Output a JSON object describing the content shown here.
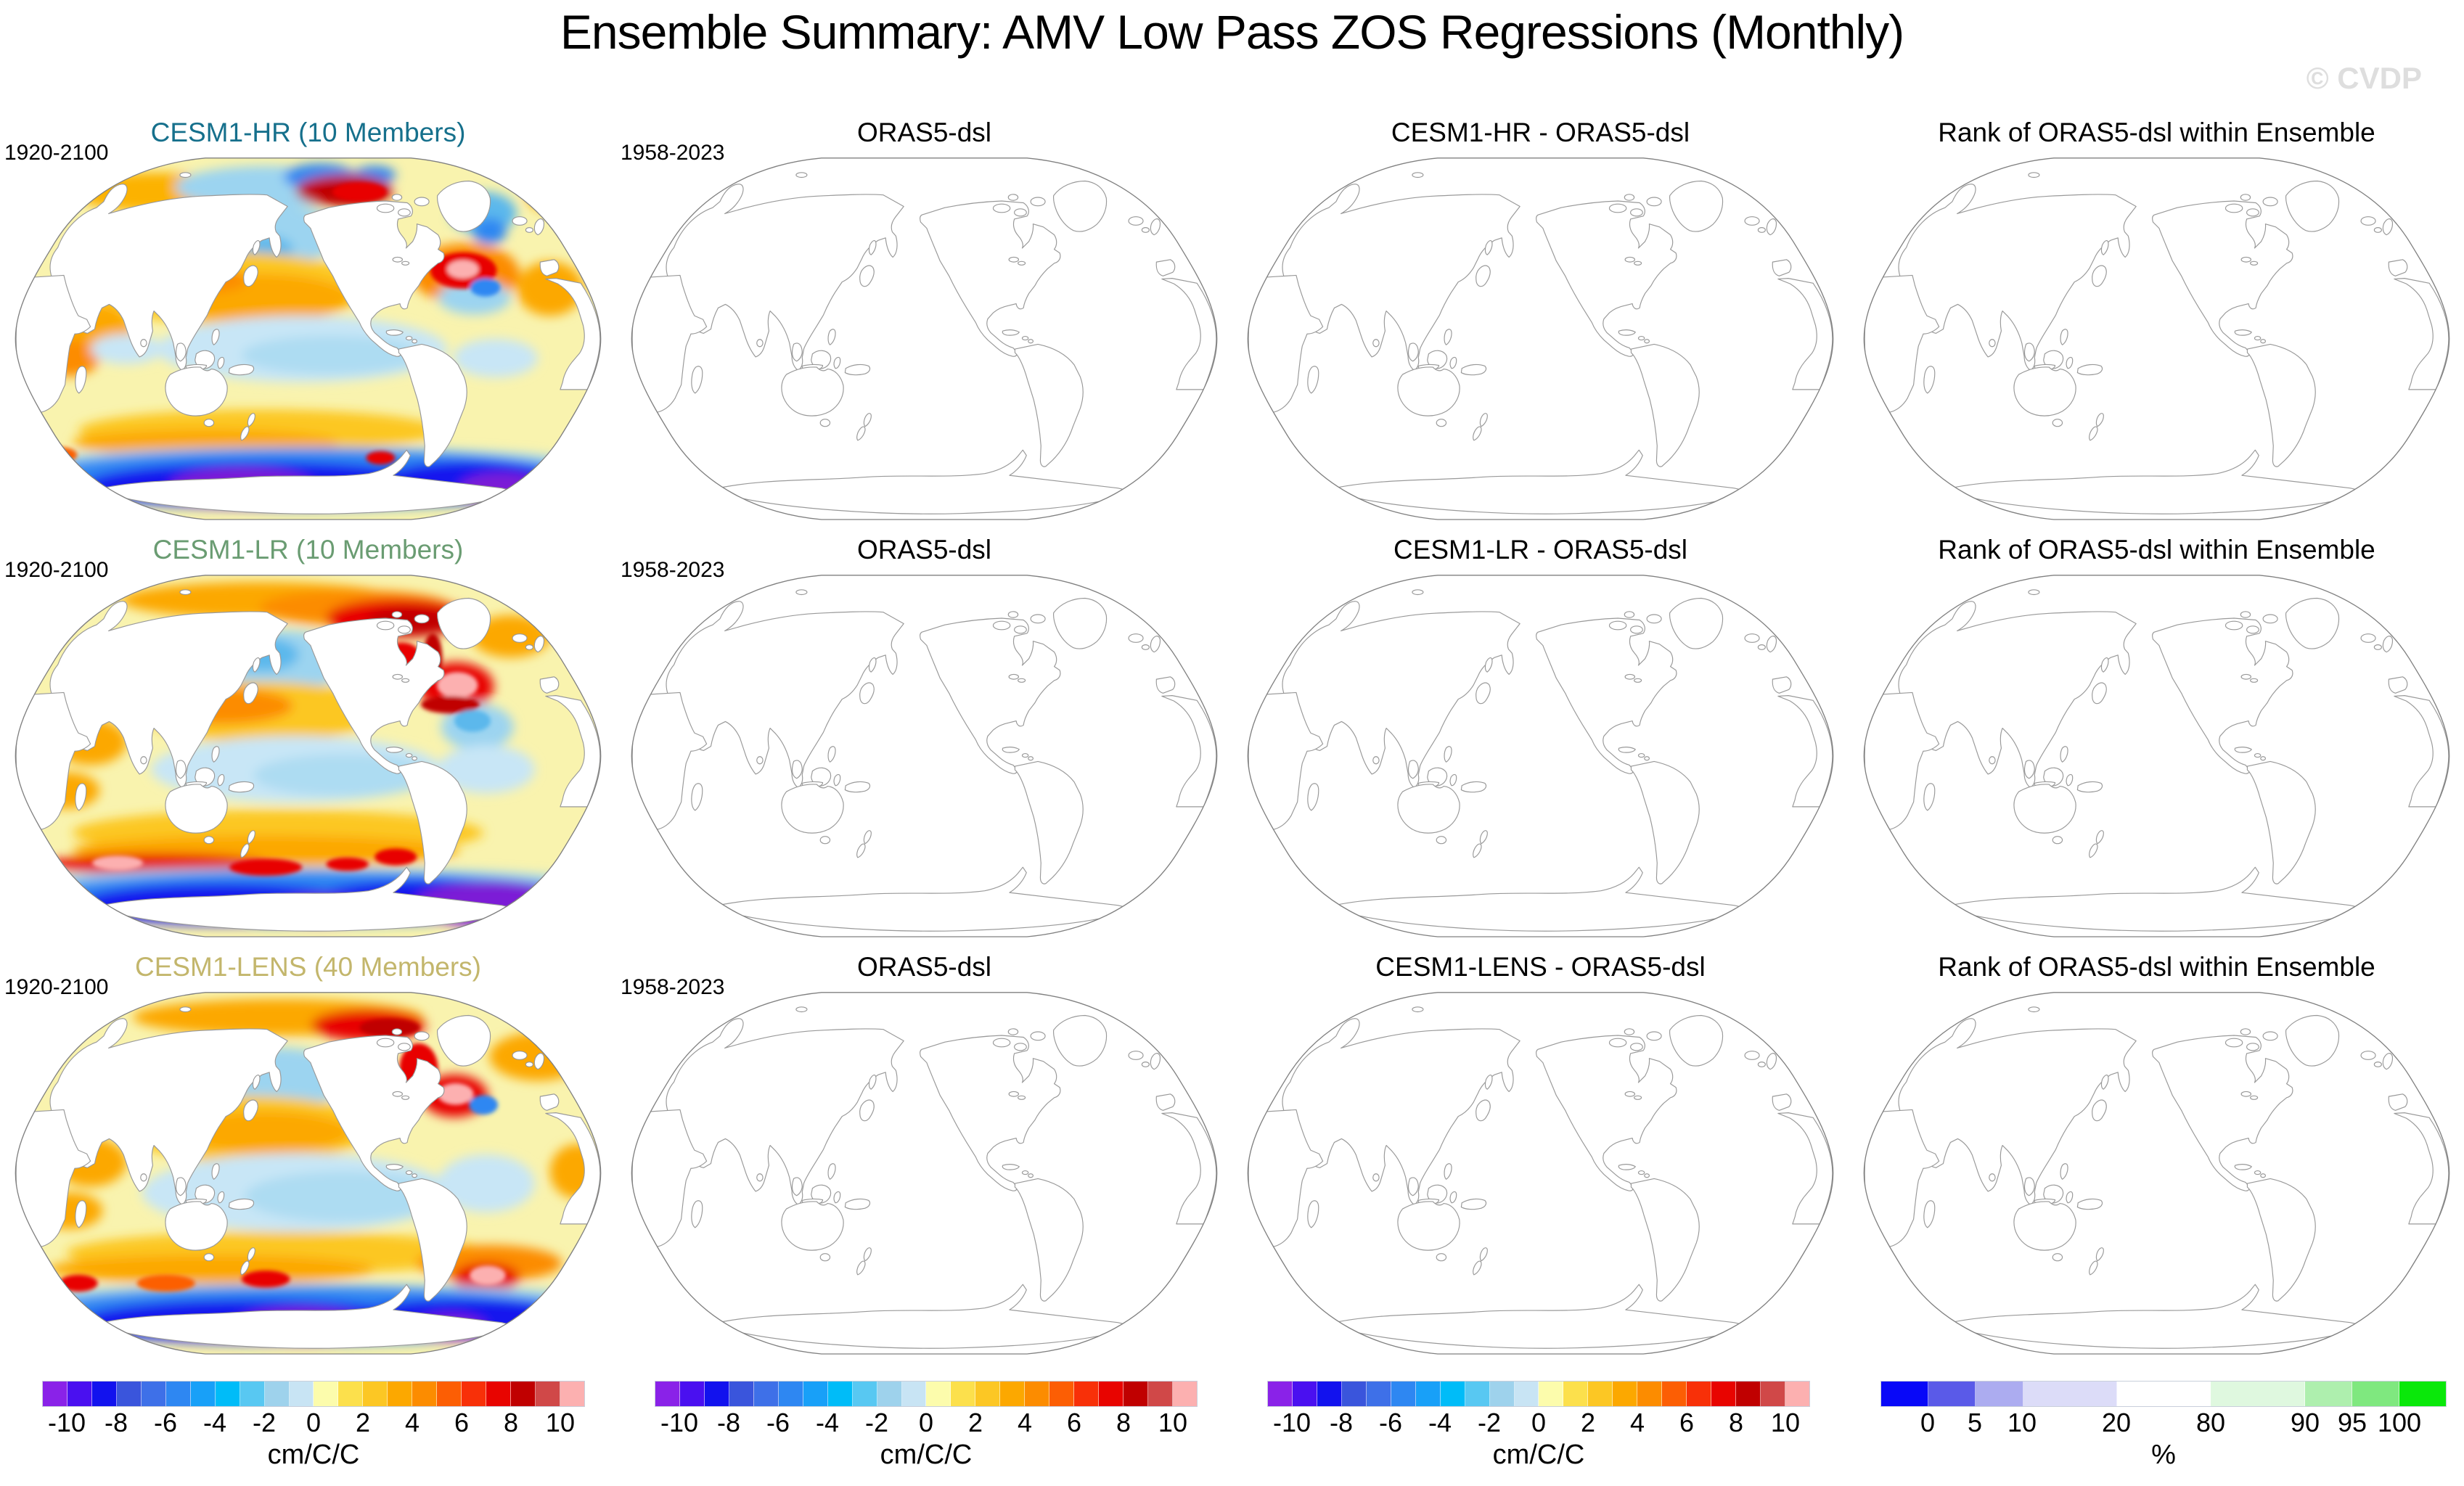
{
  "title": "Ensemble Summary: AMV Low Pass ZOS Regressions (Monthly)",
  "watermark": "© CVDP",
  "rows": [
    {
      "id": "cesm1-hr",
      "col1_title": "CESM1-HR (10 Members)",
      "col1_color": "#16708C",
      "col1_period": "1920-2100",
      "col2_title": "ORAS5-dsl",
      "col2_period": "1958-2023",
      "col3_title": "CESM1-HR - ORAS5-dsl",
      "col4_title": "Rank of ORAS5-dsl within Ensemble"
    },
    {
      "id": "cesm1-lr",
      "col1_title": "CESM1-LR (10 Members)",
      "col1_color": "#6A9C72",
      "col1_period": "1920-2100",
      "col2_title": "ORAS5-dsl",
      "col2_period": "1958-2023",
      "col3_title": "CESM1-LR - ORAS5-dsl",
      "col4_title": "Rank of ORAS5-dsl within Ensemble"
    },
    {
      "id": "cesm1-lens",
      "col1_title": "CESM1-LENS (40 Members)",
      "col1_color": "#C3B66C",
      "col1_period": "1920-2100",
      "col2_title": "ORAS5-dsl",
      "col2_period": "1958-2023",
      "col3_title": "CESM1-LENS - ORAS5-dsl",
      "col4_title": "Rank of ORAS5-dsl within Ensemble"
    }
  ],
  "colorbars": {
    "regression": {
      "unit": "cm/C/C",
      "ticks": [
        "-10",
        "-8",
        "-6",
        "-4",
        "-2",
        "0",
        "2",
        "4",
        "6",
        "8",
        "10"
      ],
      "colors": [
        "#8A22E8",
        "#4A10F0",
        "#1212EE",
        "#3A55DC",
        "#3E70E8",
        "#2E87F2",
        "#18A0F8",
        "#00BCF8",
        "#58C8F2",
        "#9ED2EC",
        "#C8E4F4",
        "#FCFCAC",
        "#FCE04C",
        "#FCC724",
        "#FCA800",
        "#FC8C00",
        "#FC5E04",
        "#F83008",
        "#E80400",
        "#C00000",
        "#D04848",
        "#FCB0B0"
      ]
    },
    "rank": {
      "unit": "%",
      "ticks": [
        "0",
        "5",
        "10",
        "20",
        "80",
        "90",
        "95",
        "100"
      ],
      "colors": [
        "#0808F8",
        "#5A5AE8",
        "#ACACF0",
        "#DCDCF8",
        "#FFFFFF",
        "#DFF8DF",
        "#AEEFAE",
        "#7FE87F",
        "#0AE80A"
      ],
      "widths": [
        1,
        1,
        1,
        2,
        2,
        2,
        1,
        1,
        1
      ]
    }
  },
  "chart_data": {
    "type": "heatmap",
    "subtype": "ensemble-map-grid",
    "title": "Ensemble Summary: AMV Low Pass ZOS Regressions (Monthly)",
    "layout": {
      "rows": 3,
      "cols": 4
    },
    "panels": [
      {
        "row": 1,
        "col": 1,
        "title": "CESM1-HR (10 Members)",
        "period": "1920-2100",
        "filled": true
      },
      {
        "row": 1,
        "col": 2,
        "title": "ORAS5-dsl",
        "period": "1958-2023",
        "filled": false
      },
      {
        "row": 1,
        "col": 3,
        "title": "CESM1-HR - ORAS5-dsl",
        "filled": false
      },
      {
        "row": 1,
        "col": 4,
        "title": "Rank of ORAS5-dsl within Ensemble",
        "filled": false
      },
      {
        "row": 2,
        "col": 1,
        "title": "CESM1-LR (10 Members)",
        "period": "1920-2100",
        "filled": true
      },
      {
        "row": 2,
        "col": 2,
        "title": "ORAS5-dsl",
        "period": "1958-2023",
        "filled": false
      },
      {
        "row": 2,
        "col": 3,
        "title": "CESM1-LR - ORAS5-dsl",
        "filled": false
      },
      {
        "row": 2,
        "col": 4,
        "title": "Rank of ORAS5-dsl within Ensemble",
        "filled": false
      },
      {
        "row": 3,
        "col": 1,
        "title": "CESM1-LENS (40 Members)",
        "period": "1920-2100",
        "filled": true
      },
      {
        "row": 3,
        "col": 2,
        "title": "ORAS5-dsl",
        "period": "1958-2023",
        "filled": false
      },
      {
        "row": 3,
        "col": 3,
        "title": "CESM1-LENS - ORAS5-dsl",
        "filled": false
      },
      {
        "row": 3,
        "col": 4,
        "title": "Rank of ORAS5-dsl within Ensemble",
        "filled": false
      }
    ],
    "scales": [
      {
        "name": "regression",
        "unit": "cm/C/C",
        "range": [
          -10,
          10
        ],
        "tick_step": 2,
        "n_segments": 22
      },
      {
        "name": "rank",
        "unit": "%",
        "ticks": [
          0,
          5,
          10,
          20,
          80,
          90,
          95,
          100
        ],
        "n_segments": 9
      }
    ],
    "notes": "Column 1 panels contain filled AMV low-pass ZOS regression fields over the ocean; columns 2-4 show only coastline outlines (no field plotted)."
  }
}
